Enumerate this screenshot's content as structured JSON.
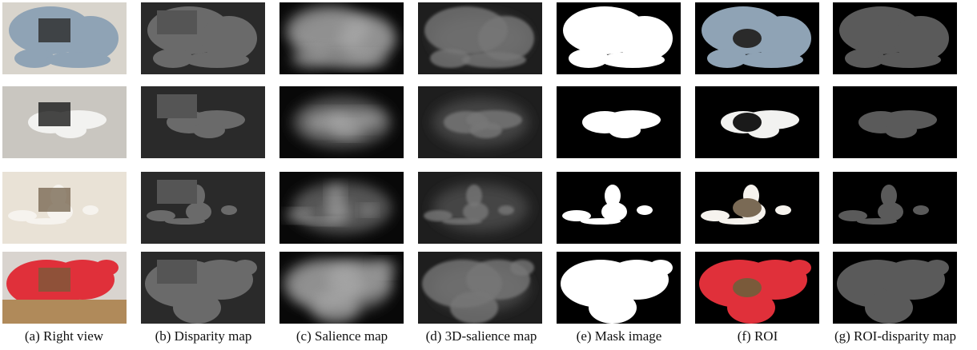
{
  "figure": {
    "captions": [
      "(a) Right view",
      "(b) Disparity map",
      "(c) Salience map",
      "(d) 3D-salience map",
      "(e) Mask image",
      "(f) ROI",
      "(g) ROI-disparity map"
    ]
  }
}
